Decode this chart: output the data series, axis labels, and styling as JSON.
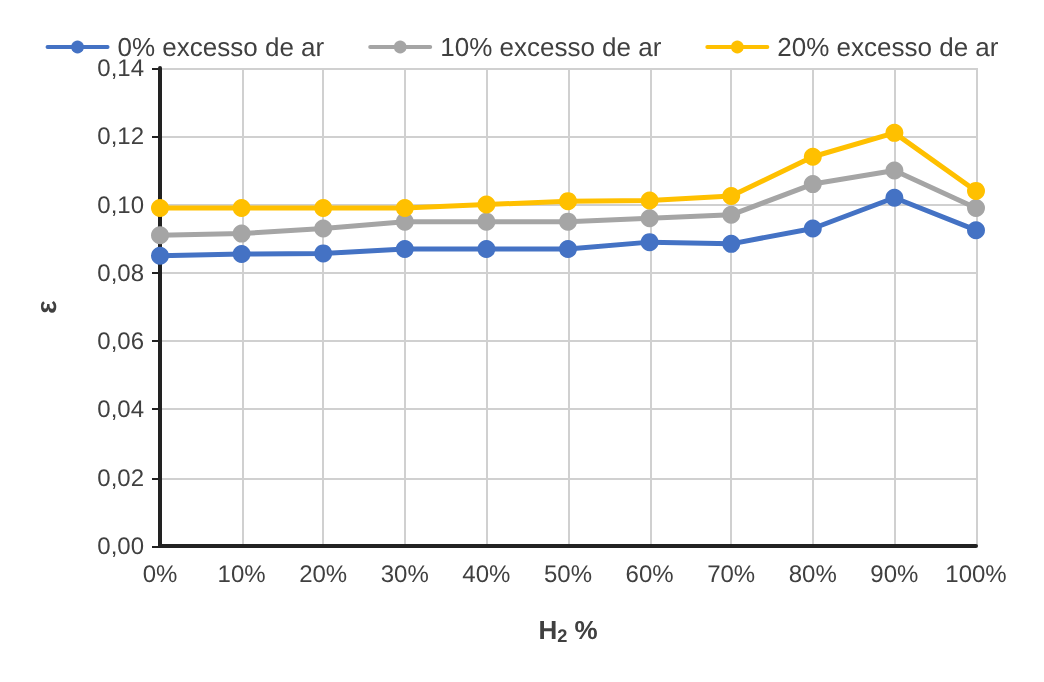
{
  "chart_data": {
    "type": "line",
    "xlabel": "H$_{2}$ %",
    "ylabel": "ε",
    "categories": [
      "0%",
      "10%",
      "20%",
      "30%",
      "40%",
      "50%",
      "60%",
      "70%",
      "80%",
      "90%",
      "100%"
    ],
    "series": [
      {
        "name": "0% excesso de ar",
        "color": "#4472c4",
        "values": [
          0.085,
          0.0855,
          0.0857,
          0.087,
          0.087,
          0.087,
          0.089,
          0.0885,
          0.093,
          0.102,
          0.0925
        ]
      },
      {
        "name": "10% excesso de ar",
        "color": "#a5a5a5",
        "values": [
          0.091,
          0.0915,
          0.093,
          0.095,
          0.095,
          0.095,
          0.096,
          0.097,
          0.106,
          0.11,
          0.099
        ]
      },
      {
        "name": "20% excesso de ar",
        "color": "#ffc000",
        "values": [
          0.099,
          0.099,
          0.099,
          0.099,
          0.1,
          0.101,
          0.1012,
          0.1025,
          0.114,
          0.121,
          0.104
        ]
      }
    ],
    "ylim": [
      0,
      0.14
    ],
    "yticks": [
      {
        "value": 0,
        "label": "0,00"
      },
      {
        "value": 0.02,
        "label": "0,02"
      },
      {
        "value": 0.04,
        "label": "0,04"
      },
      {
        "value": 0.06,
        "label": "0,06"
      },
      {
        "value": 0.08,
        "label": "0,08"
      },
      {
        "value": 0.1,
        "label": "0,10"
      },
      {
        "value": 0.12,
        "label": "0,12"
      },
      {
        "value": 0.14,
        "label": "0,14"
      }
    ],
    "grid": true,
    "legend": "top",
    "marker": "circle",
    "line_style": "solid"
  }
}
